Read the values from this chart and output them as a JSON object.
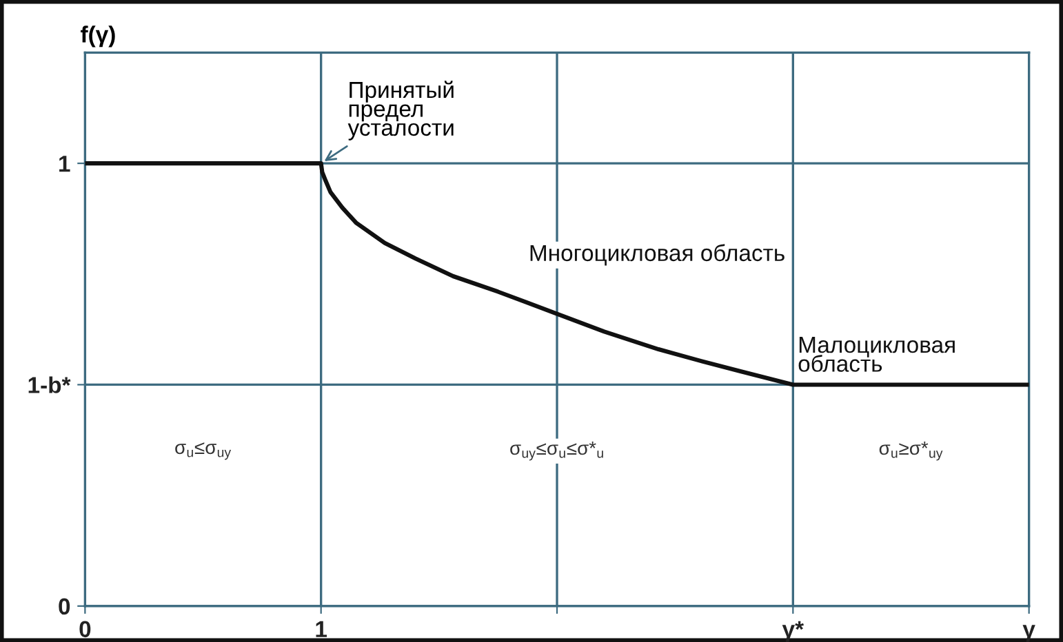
{
  "chart_data": {
    "type": "line",
    "ylabel": "f(γ)",
    "x": [
      0,
      1,
      1.005,
      1.02,
      1.04,
      1.09,
      1.15,
      1.27,
      1.4,
      1.56,
      1.75,
      2,
      2.2,
      2.43,
      2.6,
      2.78,
      3,
      4
    ],
    "series": [
      {
        "color": "#111111",
        "values": [
          1,
          1,
          0.98,
          0.96,
          0.935,
          0.9,
          0.865,
          0.82,
          0.785,
          0.745,
          0.71,
          0.66,
          0.62,
          0.58,
          0.555,
          0.53,
          0.5,
          0.5
        ]
      }
    ],
    "xlim": [
      0,
      4
    ],
    "xticks": [
      0,
      1,
      {
        "value": 2,
        "label": null
      },
      {
        "value": 3,
        "label": "γ*"
      },
      {
        "value": 4,
        "label": "γ"
      }
    ],
    "ylim": [
      0,
      1.25
    ],
    "yticks": [
      0,
      {
        "value": 0.5,
        "label": "1-b*"
      },
      1
    ],
    "grid": true,
    "marker": "none",
    "line_style": "solid",
    "annotations": [
      {
        "text": "Принятый\nпредел\nусталости",
        "x": 1,
        "y": 1
      },
      "Многоцикловая область",
      "Малоцикловая\nобласть",
      "σ$_{u}$≤σ$_{uy}$",
      "σ$_{uy}$≤σ$_{u}$≤σ*$_{u}$",
      "σ$_{u}$≥σ*$_{uy}$"
    ]
  }
}
